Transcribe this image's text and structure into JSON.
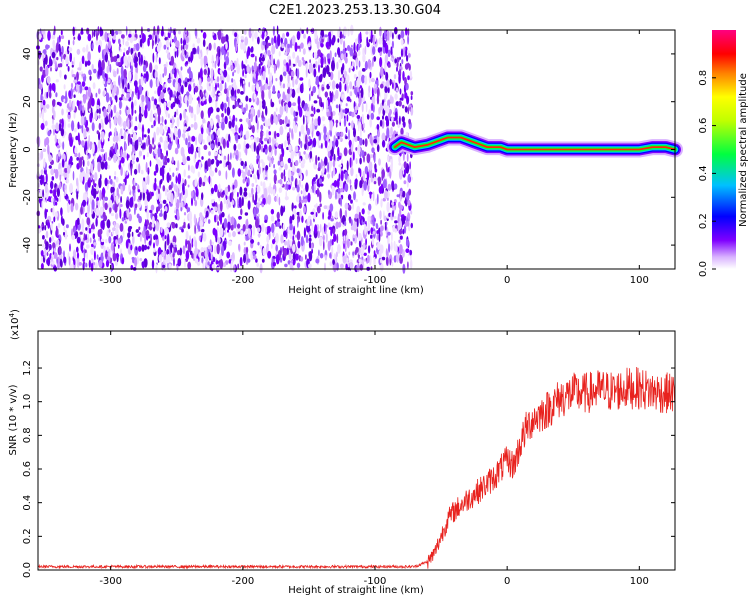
{
  "title": "C2E1.2023.253.13.30.G04",
  "chart_data": [
    {
      "type": "heatmap",
      "xlabel": "Height of straight line (km)",
      "ylabel": "Frequency (Hz)",
      "xlim": [
        -355,
        127
      ],
      "ylim": [
        -50,
        50
      ],
      "xticks": [
        -300,
        -200,
        -100,
        0,
        100
      ],
      "yticks": [
        -40,
        -20,
        0,
        20,
        40
      ],
      "noise_region_x": [
        -355,
        -72
      ],
      "signal_trace": {
        "x": [
          -85,
          -80,
          -75,
          -70,
          -60,
          -50,
          -45,
          -40,
          -35,
          -30,
          -25,
          -20,
          -15,
          -10,
          -5,
          0,
          10,
          20,
          40,
          60,
          80,
          100,
          110,
          120,
          127
        ],
        "y": [
          1,
          3,
          2,
          1,
          2,
          4,
          5,
          5,
          5,
          4,
          3,
          2,
          1,
          1,
          1,
          0,
          0,
          0,
          0,
          0,
          0,
          0,
          1,
          1,
          0
        ]
      },
      "colorbar": {
        "label": "Normalized spectral amplitude",
        "range": [
          0,
          1
        ],
        "ticks": [
          "0.0",
          "0.2",
          "0.4",
          "0.6",
          "0.8"
        ]
      }
    },
    {
      "type": "line",
      "xlabel": "Height of straight line (km)",
      "ylabel": "SNR (10 * v/v)",
      "y_scale_label": "(x10",
      "y_scale_exp": "4",
      "y_scale_close": ")",
      "xlim": [
        -355,
        127
      ],
      "ylim": [
        0,
        1.42
      ],
      "xticks": [
        -300,
        -200,
        -100,
        0,
        100
      ],
      "yticks": [
        "0.0",
        "0.2",
        "0.4",
        "0.6",
        "0.8",
        "1.0",
        "1.2"
      ],
      "series": [
        {
          "color": "#e8221e",
          "x": [
            -355,
            -250,
            -150,
            -100,
            -70,
            -60,
            -55,
            -50,
            -45,
            -40,
            -30,
            -20,
            -10,
            -5,
            0,
            5,
            10,
            15,
            20,
            30,
            40,
            50,
            60,
            70,
            80,
            90,
            100,
            110,
            120,
            127
          ],
          "y": [
            0.02,
            0.02,
            0.02,
            0.02,
            0.02,
            0.05,
            0.1,
            0.2,
            0.3,
            0.35,
            0.42,
            0.48,
            0.55,
            0.6,
            0.65,
            0.62,
            0.75,
            0.85,
            0.9,
            0.95,
            1.02,
            1.05,
            1.05,
            1.07,
            1.06,
            1.08,
            1.08,
            1.06,
            1.05,
            1.05
          ]
        }
      ]
    }
  ]
}
